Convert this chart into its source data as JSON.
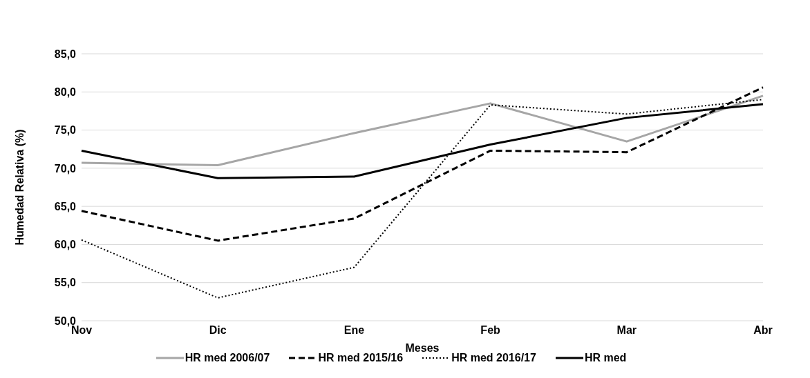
{
  "chart_data": {
    "type": "line",
    "xlabel": "Meses",
    "ylabel": "Humedad Relativa (%)",
    "categories": [
      "Nov",
      "Dic",
      "Ene",
      "Feb",
      "Mar",
      "Abr"
    ],
    "series": [
      {
        "name": "HR med 2006/07",
        "color": "#a6a6a6",
        "line_style": "solid",
        "values": [
          70.7,
          70.4,
          74.6,
          78.5,
          73.5,
          79.5
        ]
      },
      {
        "name": "HR med 2015/16",
        "color": "#000000",
        "line_style": "dashed",
        "values": [
          64.4,
          60.5,
          63.4,
          72.3,
          72.1,
          80.6
        ]
      },
      {
        "name": "HR med 2016/17",
        "color": "#000000",
        "line_style": "dotted",
        "values": [
          60.6,
          53.0,
          57.0,
          78.3,
          77.1,
          79.0
        ]
      },
      {
        "name": "HR med",
        "color": "#000000",
        "line_style": "solid",
        "values": [
          72.3,
          68.7,
          68.9,
          73.1,
          76.6,
          78.4
        ]
      }
    ],
    "ylim": [
      50,
      85
    ],
    "yticks": [
      {
        "value": 50,
        "label": "50,0"
      },
      {
        "value": 55,
        "label": "55,0"
      },
      {
        "value": 60,
        "label": "60,0"
      },
      {
        "value": 65,
        "label": "65,0"
      },
      {
        "value": 70,
        "label": "70,0"
      },
      {
        "value": 75,
        "label": "75,0"
      },
      {
        "value": 80,
        "label": "80,0"
      },
      {
        "value": 85,
        "label": "85,0"
      }
    ],
    "grid": "y",
    "legend": "bottom",
    "marker": "none"
  }
}
